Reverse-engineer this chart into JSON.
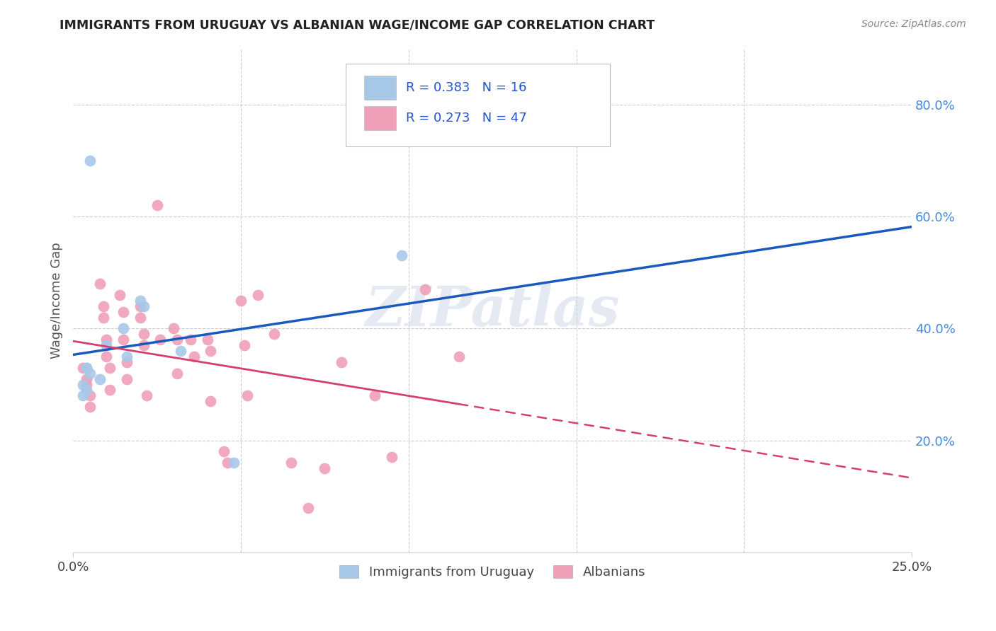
{
  "title": "IMMIGRANTS FROM URUGUAY VS ALBANIAN WAGE/INCOME GAP CORRELATION CHART",
  "source": "Source: ZipAtlas.com",
  "ylabel": "Wage/Income Gap",
  "legend_label1": "Immigrants from Uruguay",
  "legend_label2": "Albanians",
  "R1": "0.383",
  "N1": "16",
  "R2": "0.273",
  "N2": "47",
  "color_uruguay": "#a8c8e8",
  "color_albanian": "#f0a0b8",
  "line_color_uruguay": "#1a5abf",
  "line_color_albanian": "#d44070",
  "watermark": "ZIPatlas",
  "uruguay_x": [
    0.5,
    2.0,
    2.1,
    1.5,
    1.0,
    0.4,
    0.4,
    0.5,
    0.8,
    0.3,
    0.4,
    0.3,
    1.6,
    3.2,
    4.8,
    9.8
  ],
  "uruguay_y": [
    0.7,
    0.45,
    0.44,
    0.4,
    0.37,
    0.33,
    0.33,
    0.32,
    0.31,
    0.3,
    0.29,
    0.28,
    0.35,
    0.36,
    0.16,
    0.53
  ],
  "albanian_x": [
    0.3,
    0.4,
    0.4,
    0.5,
    0.5,
    0.8,
    0.9,
    0.9,
    1.0,
    1.0,
    1.1,
    1.1,
    1.4,
    1.5,
    1.5,
    1.6,
    1.6,
    2.0,
    2.0,
    2.1,
    2.1,
    2.2,
    2.5,
    2.6,
    3.0,
    3.1,
    3.1,
    3.5,
    3.6,
    4.0,
    4.1,
    4.1,
    4.5,
    4.6,
    5.0,
    5.1,
    5.2,
    5.5,
    6.0,
    6.5,
    7.0,
    7.5,
    8.0,
    9.0,
    9.5,
    10.5,
    11.5
  ],
  "albanian_y": [
    0.33,
    0.31,
    0.3,
    0.28,
    0.26,
    0.48,
    0.44,
    0.42,
    0.38,
    0.35,
    0.33,
    0.29,
    0.46,
    0.43,
    0.38,
    0.34,
    0.31,
    0.44,
    0.42,
    0.39,
    0.37,
    0.28,
    0.62,
    0.38,
    0.4,
    0.38,
    0.32,
    0.38,
    0.35,
    0.38,
    0.36,
    0.27,
    0.18,
    0.16,
    0.45,
    0.37,
    0.28,
    0.46,
    0.39,
    0.16,
    0.08,
    0.15,
    0.34,
    0.28,
    0.17,
    0.47,
    0.35
  ],
  "xmin": 0.0,
  "xmax": 25.0,
  "ymin": 0.0,
  "ymax": 0.9,
  "right_yticks": [
    0.2,
    0.4,
    0.6,
    0.8
  ],
  "right_yticklabels": [
    "20.0%",
    "40.0%",
    "60.0%",
    "80.0%"
  ],
  "xtick_labels": [
    "0.0%",
    "25.0%"
  ],
  "xtick_positions": [
    0.0,
    25.0
  ],
  "grid_color": "#cccccc",
  "background_color": "#ffffff",
  "spine_color": "#cccccc"
}
